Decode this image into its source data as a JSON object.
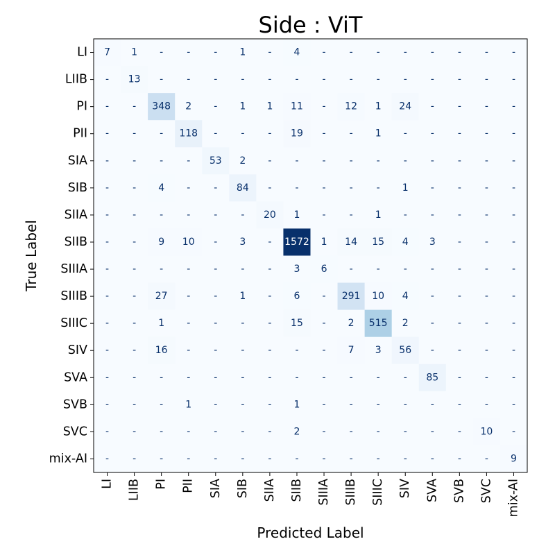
{
  "chart_data": {
    "type": "heatmap",
    "title": "Side : ViT",
    "xlabel": "Predicted Label",
    "ylabel": "True Label",
    "labels": [
      "LI",
      "LIIB",
      "PI",
      "PII",
      "SIA",
      "SIB",
      "SIIA",
      "SIIB",
      "SIIIA",
      "SIIIB",
      "SIIIC",
      "SIV",
      "SVA",
      "SVB",
      "SVC",
      "mix-AI"
    ],
    "empty_cell_text": "-",
    "colormap": "Blues",
    "vmin": 0,
    "vmax": 1572,
    "colorbar": false,
    "matrix": [
      [
        7,
        1,
        0,
        0,
        0,
        1,
        0,
        4,
        0,
        0,
        0,
        0,
        0,
        0,
        0,
        0
      ],
      [
        0,
        13,
        0,
        0,
        0,
        0,
        0,
        0,
        0,
        0,
        0,
        0,
        0,
        0,
        0,
        0
      ],
      [
        0,
        0,
        348,
        2,
        0,
        1,
        1,
        11,
        0,
        12,
        1,
        24,
        0,
        0,
        0,
        0
      ],
      [
        0,
        0,
        0,
        118,
        0,
        0,
        0,
        19,
        0,
        0,
        1,
        0,
        0,
        0,
        0,
        0
      ],
      [
        0,
        0,
        0,
        0,
        53,
        2,
        0,
        0,
        0,
        0,
        0,
        0,
        0,
        0,
        0,
        0
      ],
      [
        0,
        0,
        4,
        0,
        0,
        84,
        0,
        0,
        0,
        0,
        0,
        1,
        0,
        0,
        0,
        0
      ],
      [
        0,
        0,
        0,
        0,
        0,
        0,
        20,
        1,
        0,
        0,
        1,
        0,
        0,
        0,
        0,
        0
      ],
      [
        0,
        0,
        9,
        10,
        0,
        3,
        0,
        1572,
        1,
        14,
        15,
        4,
        3,
        0,
        0,
        0
      ],
      [
        0,
        0,
        0,
        0,
        0,
        0,
        0,
        3,
        6,
        0,
        0,
        0,
        0,
        0,
        0,
        0
      ],
      [
        0,
        0,
        27,
        0,
        0,
        1,
        0,
        6,
        0,
        291,
        10,
        4,
        0,
        0,
        0,
        0
      ],
      [
        0,
        0,
        1,
        0,
        0,
        0,
        0,
        15,
        0,
        2,
        515,
        2,
        0,
        0,
        0,
        0
      ],
      [
        0,
        0,
        16,
        0,
        0,
        0,
        0,
        0,
        0,
        7,
        3,
        56,
        0,
        0,
        0,
        0
      ],
      [
        0,
        0,
        0,
        0,
        0,
        0,
        0,
        0,
        0,
        0,
        0,
        0,
        85,
        0,
        0,
        0
      ],
      [
        0,
        0,
        0,
        1,
        0,
        0,
        0,
        1,
        0,
        0,
        0,
        0,
        0,
        0,
        0,
        0
      ],
      [
        0,
        0,
        0,
        0,
        0,
        0,
        0,
        2,
        0,
        0,
        0,
        0,
        0,
        0,
        10,
        0
      ],
      [
        0,
        0,
        0,
        0,
        0,
        0,
        0,
        0,
        0,
        0,
        0,
        0,
        0,
        0,
        0,
        9
      ]
    ]
  }
}
